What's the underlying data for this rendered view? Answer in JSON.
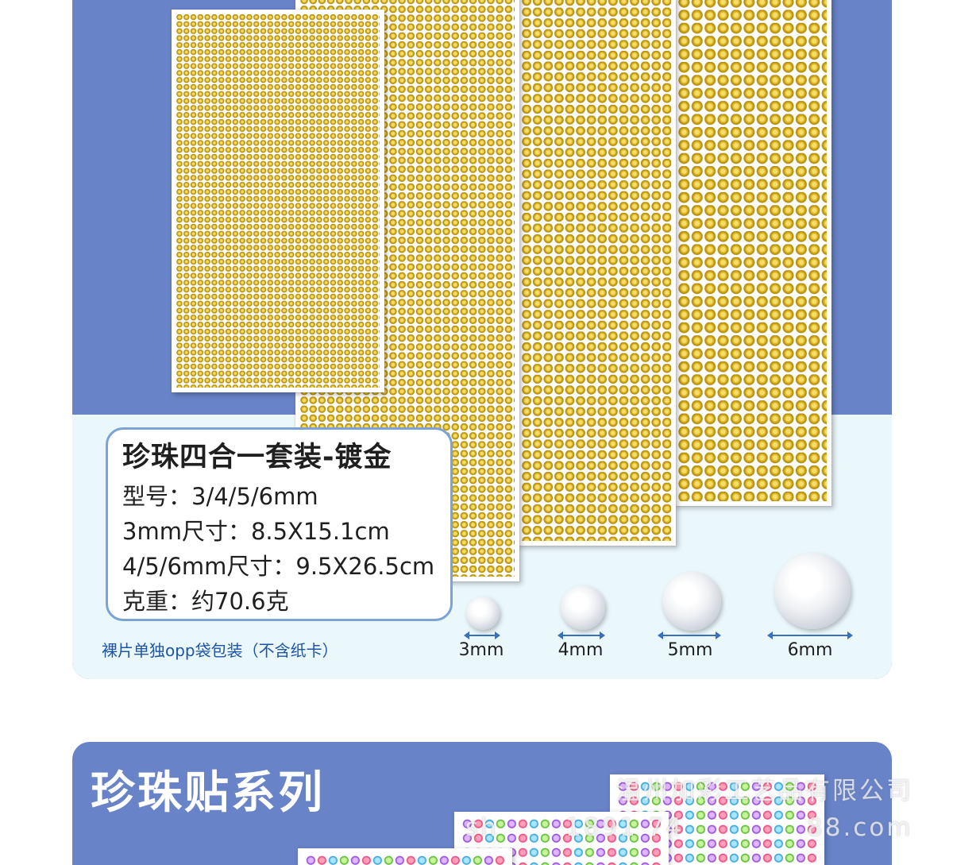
{
  "product": {
    "title": "珍珠四合一套装-镀金",
    "lines": [
      "型号：3/4/5/6mm",
      "3mm尺寸：8.5X15.1cm",
      "4/5/6mm尺寸：9.5X26.5cm",
      "克重：约70.6克"
    ],
    "packaging_note": "裸片单独opp袋包装（不含纸卡）"
  },
  "pearl_sizes": [
    "3mm",
    "4mm",
    "5mm",
    "6mm"
  ],
  "series_title": "珍珠贴系列",
  "watermark": {
    "company": "温州加彩工艺品有限公司",
    "shop_fragment_1": "sh",
    "shop_fragment_2": "1891 74",
    "shop_fragment_3": "88.com"
  },
  "colors": {
    "panel_blue": "#6883c8",
    "panel_light": "#eaf7fb",
    "gold": "#d4aa12",
    "box_border": "#7ba3d8",
    "note_blue": "#1d55a8"
  }
}
